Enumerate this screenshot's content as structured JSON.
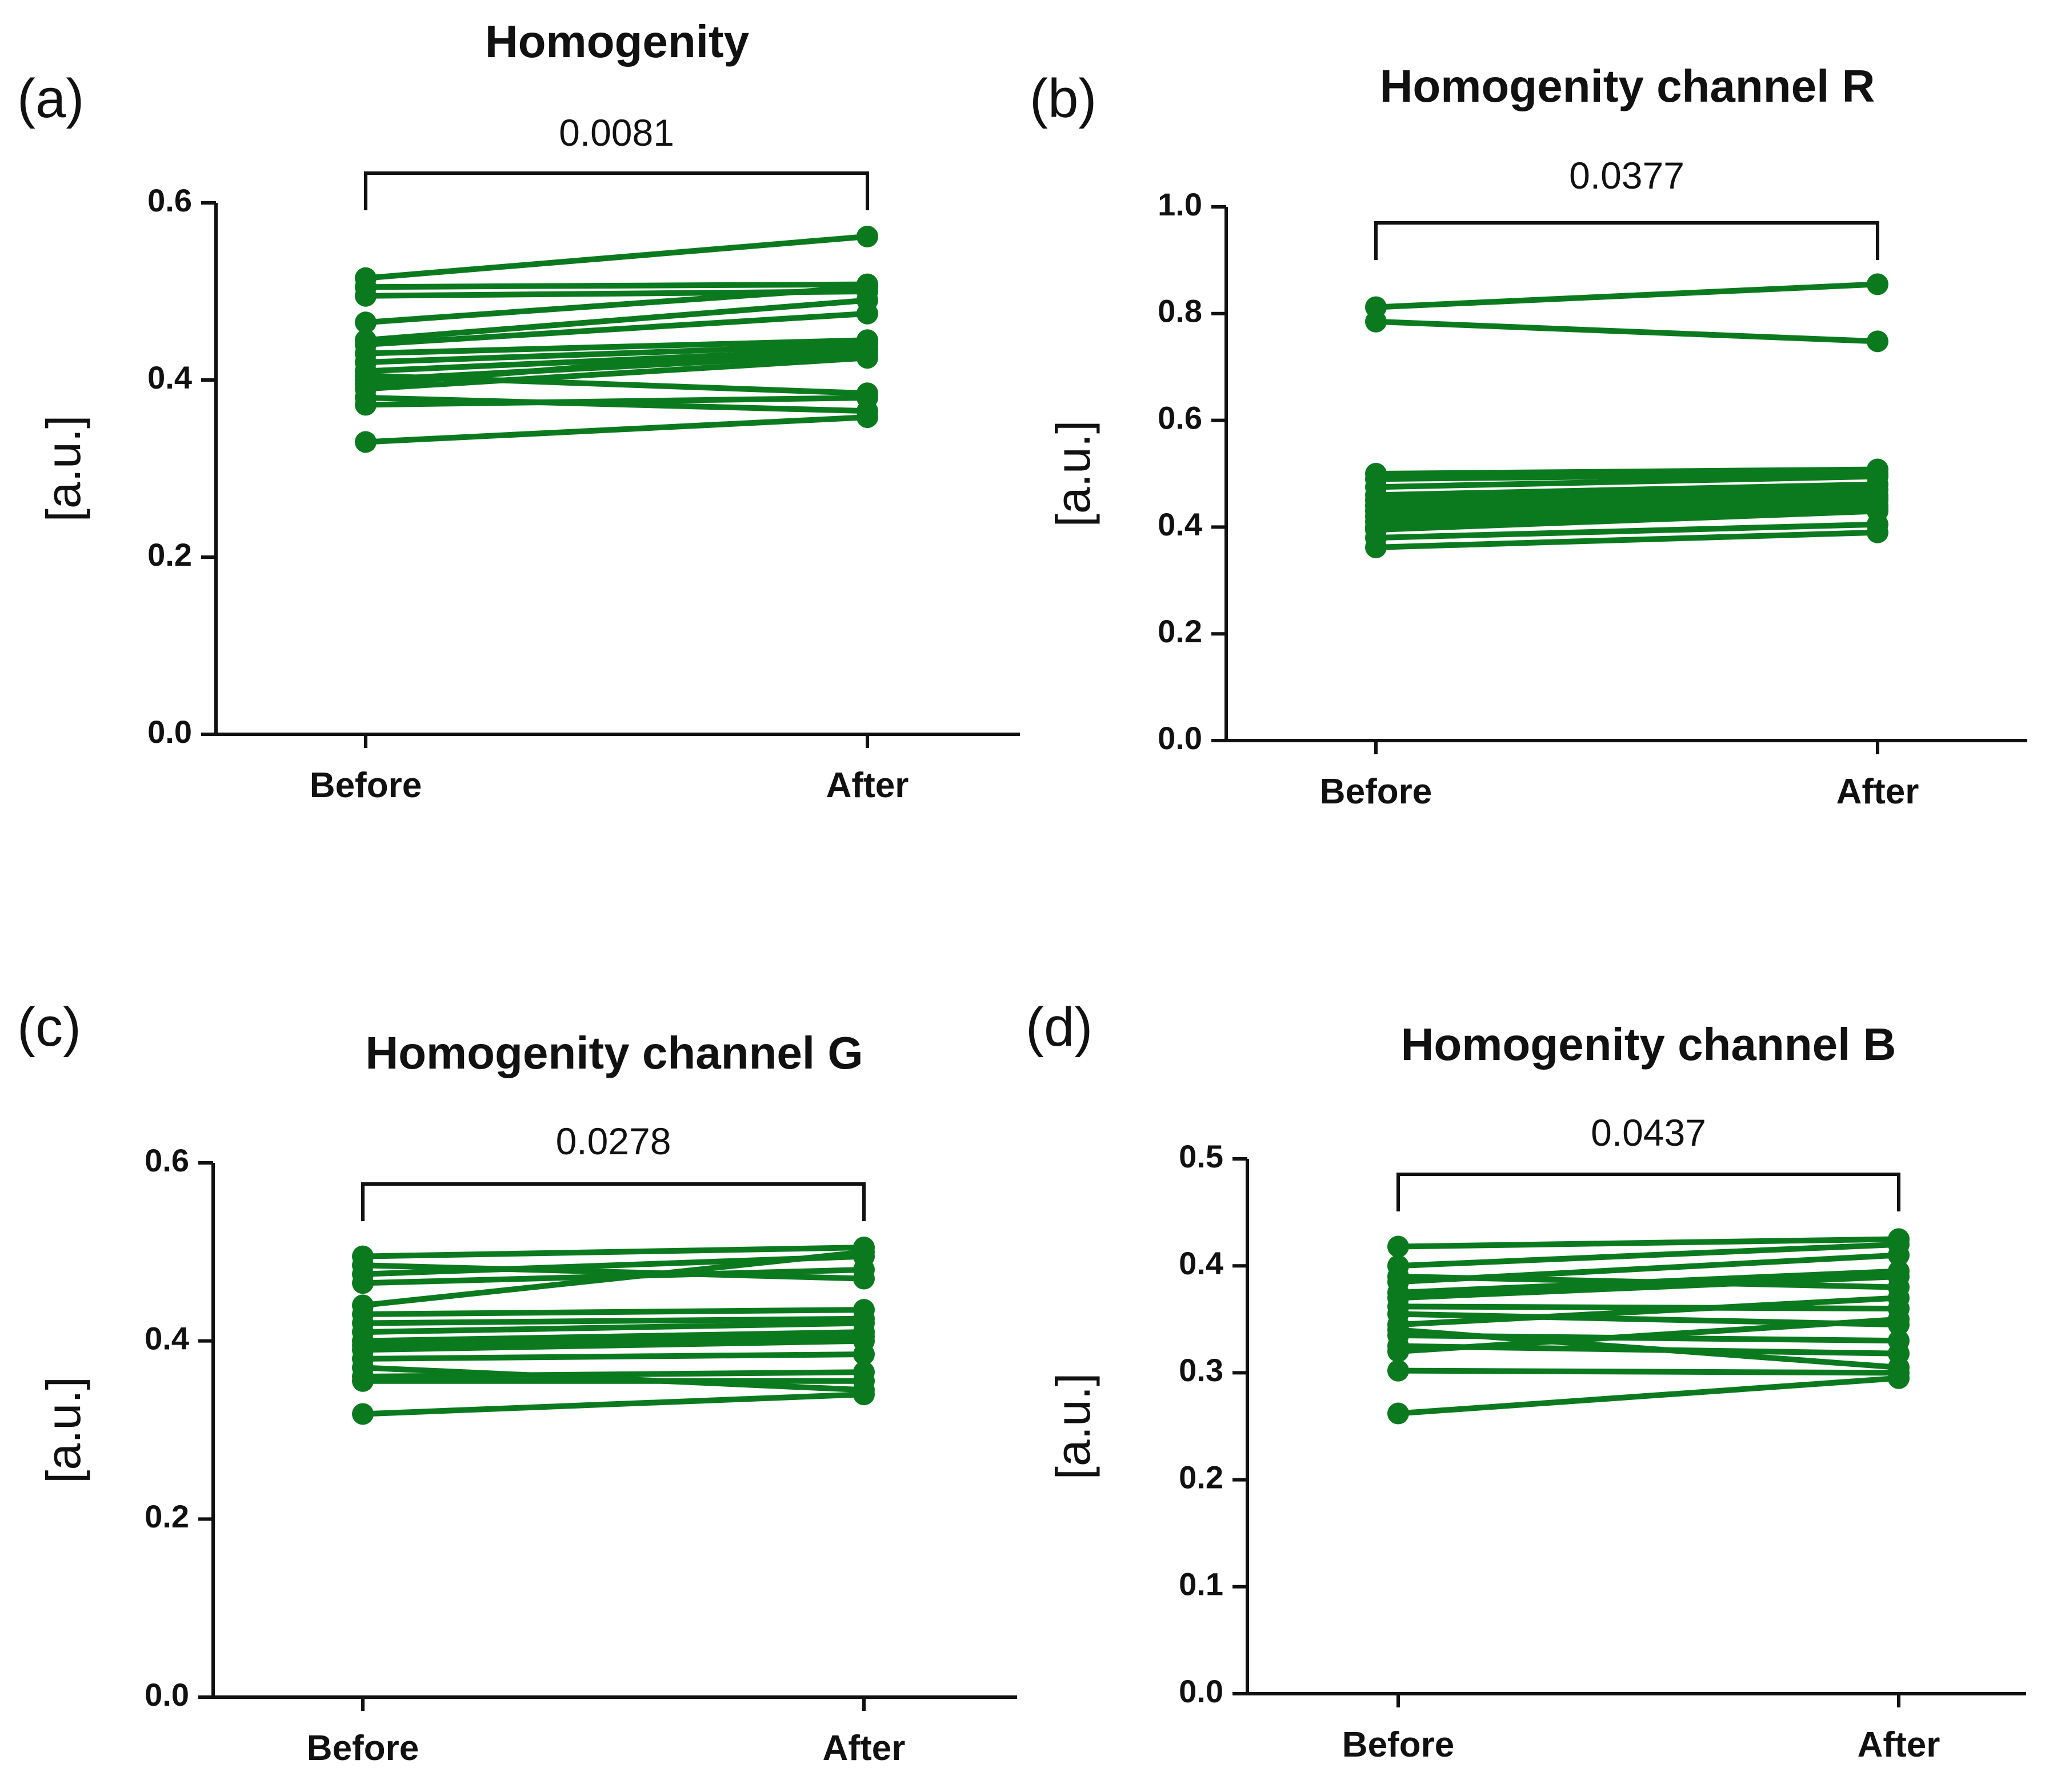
{
  "figure": {
    "description_labels": [
      "(a)",
      "(b)",
      "(c)",
      "(d)"
    ]
  },
  "chart_data": [
    {
      "type": "line",
      "panel_label": "(a)",
      "title": "Homogenity",
      "xlabel": "",
      "ylabel": "[a.u.]",
      "categories": [
        "Before",
        "After"
      ],
      "ylim": [
        0,
        0.6
      ],
      "yticks": [
        0.0,
        0.2,
        0.4,
        0.6
      ],
      "ytick_labels": [
        "0.0",
        "0.2",
        "0.4",
        "0.6"
      ],
      "p_value": "0.0081",
      "color": "#0b7a1e",
      "series": [
        {
          "name": "s1",
          "values": [
            0.515,
            0.562
          ]
        },
        {
          "name": "s2",
          "values": [
            0.505,
            0.508
          ]
        },
        {
          "name": "s3",
          "values": [
            0.495,
            0.5
          ]
        },
        {
          "name": "s4",
          "values": [
            0.465,
            0.505
          ]
        },
        {
          "name": "s5",
          "values": [
            0.445,
            0.49
          ]
        },
        {
          "name": "s6",
          "values": [
            0.44,
            0.475
          ]
        },
        {
          "name": "s7",
          "values": [
            0.43,
            0.445
          ]
        },
        {
          "name": "s8",
          "values": [
            0.42,
            0.44
          ]
        },
        {
          "name": "s9",
          "values": [
            0.41,
            0.435
          ]
        },
        {
          "name": "s10",
          "values": [
            0.4,
            0.43
          ]
        },
        {
          "name": "s11",
          "values": [
            0.395,
            0.44
          ]
        },
        {
          "name": "s12",
          "values": [
            0.39,
            0.425
          ]
        },
        {
          "name": "s13",
          "values": [
            0.405,
            0.385
          ]
        },
        {
          "name": "s14",
          "values": [
            0.38,
            0.365
          ]
        },
        {
          "name": "s15",
          "values": [
            0.372,
            0.38
          ]
        },
        {
          "name": "s16",
          "values": [
            0.33,
            0.358
          ]
        }
      ]
    },
    {
      "type": "line",
      "panel_label": "(b)",
      "title": "Homogenity channel R",
      "xlabel": "",
      "ylabel": "[a.u.]",
      "categories": [
        "Before",
        "After"
      ],
      "ylim": [
        0,
        1.0
      ],
      "yticks": [
        0.0,
        0.2,
        0.4,
        0.6,
        0.8,
        1.0
      ],
      "ytick_labels": [
        "0.0",
        "0.2",
        "0.4",
        "0.6",
        "0.8",
        "1.0"
      ],
      "p_value": "0.0377",
      "color": "#0b7a1e",
      "series": [
        {
          "name": "s1",
          "values": [
            0.812,
            0.855
          ]
        },
        {
          "name": "s2",
          "values": [
            0.785,
            0.748
          ]
        },
        {
          "name": "s3",
          "values": [
            0.5,
            0.508
          ]
        },
        {
          "name": "s4",
          "values": [
            0.49,
            0.5
          ]
        },
        {
          "name": "s5",
          "values": [
            0.475,
            0.495
          ]
        },
        {
          "name": "s6",
          "values": [
            0.46,
            0.48
          ]
        },
        {
          "name": "s7",
          "values": [
            0.45,
            0.47
          ]
        },
        {
          "name": "s8",
          "values": [
            0.44,
            0.46
          ]
        },
        {
          "name": "s9",
          "values": [
            0.43,
            0.455
          ]
        },
        {
          "name": "s10",
          "values": [
            0.42,
            0.45
          ]
        },
        {
          "name": "s11",
          "values": [
            0.41,
            0.44
          ]
        },
        {
          "name": "s12",
          "values": [
            0.4,
            0.435
          ]
        },
        {
          "name": "s13",
          "values": [
            0.395,
            0.43
          ]
        },
        {
          "name": "s14",
          "values": [
            0.38,
            0.405
          ]
        },
        {
          "name": "s15",
          "values": [
            0.362,
            0.39
          ]
        }
      ]
    },
    {
      "type": "line",
      "panel_label": "(c)",
      "title": "Homogenity channel G",
      "xlabel": "",
      "ylabel": "[a.u.]",
      "categories": [
        "Before",
        "After"
      ],
      "ylim": [
        0,
        0.6
      ],
      "yticks": [
        0.0,
        0.2,
        0.4,
        0.6
      ],
      "ytick_labels": [
        "0.0",
        "0.2",
        "0.4",
        "0.6"
      ],
      "p_value": "0.0278",
      "color": "#0b7a1e",
      "series": [
        {
          "name": "s1",
          "values": [
            0.495,
            0.505
          ]
        },
        {
          "name": "s2",
          "values": [
            0.485,
            0.47
          ]
        },
        {
          "name": "s3",
          "values": [
            0.475,
            0.495
          ]
        },
        {
          "name": "s4",
          "values": [
            0.465,
            0.48
          ]
        },
        {
          "name": "s5",
          "values": [
            0.44,
            0.5
          ]
        },
        {
          "name": "s6",
          "values": [
            0.43,
            0.435
          ]
        },
        {
          "name": "s7",
          "values": [
            0.42,
            0.425
          ]
        },
        {
          "name": "s8",
          "values": [
            0.41,
            0.42
          ]
        },
        {
          "name": "s9",
          "values": [
            0.4,
            0.41
          ]
        },
        {
          "name": "s10",
          "values": [
            0.395,
            0.405
          ]
        },
        {
          "name": "s11",
          "values": [
            0.39,
            0.4
          ]
        },
        {
          "name": "s12",
          "values": [
            0.38,
            0.385
          ]
        },
        {
          "name": "s13",
          "values": [
            0.37,
            0.345
          ]
        },
        {
          "name": "s14",
          "values": [
            0.36,
            0.365
          ]
        },
        {
          "name": "s15",
          "values": [
            0.355,
            0.355
          ]
        },
        {
          "name": "s16",
          "values": [
            0.318,
            0.34
          ]
        }
      ]
    },
    {
      "type": "line",
      "panel_label": "(d)",
      "title": "Homogenity channel B",
      "xlabel": "",
      "ylabel": "[a.u.]",
      "categories": [
        "Before",
        "After"
      ],
      "ylim": [
        0,
        0.5
      ],
      "yticks": [
        0.0,
        0.1,
        0.2,
        0.3,
        0.4,
        0.5
      ],
      "ytick_labels": [
        "0.0",
        "0.1",
        "0.2",
        "0.3",
        "0.4",
        "0.5"
      ],
      "p_value": "0.0437",
      "color": "#0b7a1e",
      "series": [
        {
          "name": "s1",
          "values": [
            0.418,
            0.425
          ]
        },
        {
          "name": "s2",
          "values": [
            0.4,
            0.42
          ]
        },
        {
          "name": "s3",
          "values": [
            0.39,
            0.38
          ]
        },
        {
          "name": "s4",
          "values": [
            0.385,
            0.41
          ]
        },
        {
          "name": "s5",
          "values": [
            0.375,
            0.395
          ]
        },
        {
          "name": "s6",
          "values": [
            0.37,
            0.39
          ]
        },
        {
          "name": "s7",
          "values": [
            0.362,
            0.36
          ]
        },
        {
          "name": "s8",
          "values": [
            0.355,
            0.345
          ]
        },
        {
          "name": "s9",
          "values": [
            0.345,
            0.37
          ]
        },
        {
          "name": "s10",
          "values": [
            0.34,
            0.305
          ]
        },
        {
          "name": "s11",
          "values": [
            0.335,
            0.33
          ]
        },
        {
          "name": "s12",
          "values": [
            0.325,
            0.318
          ]
        },
        {
          "name": "s13",
          "values": [
            0.32,
            0.35
          ]
        },
        {
          "name": "s14",
          "values": [
            0.302,
            0.3
          ]
        },
        {
          "name": "s15",
          "values": [
            0.262,
            0.295
          ]
        }
      ]
    }
  ]
}
